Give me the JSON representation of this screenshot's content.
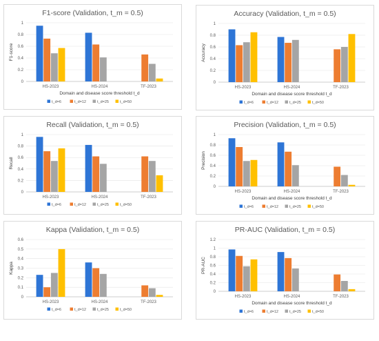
{
  "colors": {
    "t_d=6": "#2e75d6",
    "t_d=12": "#ed7d31",
    "t_d=25": "#a5a5a5",
    "t_d=50": "#ffc000"
  },
  "chart_data": [
    {
      "type": "bar",
      "title": "F1-score (Validation, t_m = 0.5)",
      "xlabel": "Domain and disease score threshold t_d",
      "ylabel": "F1-score",
      "ylim": [
        0,
        1
      ],
      "ystep": 0.2,
      "yticks": [
        "0",
        "0.2",
        "0.4",
        "0.6",
        "0.8",
        "1"
      ],
      "categories": [
        "HS-2023",
        "HS-2024",
        "TF-2023"
      ],
      "series": [
        {
          "name": "t_d=6",
          "values": [
            0.95,
            0.83,
            null
          ]
        },
        {
          "name": "t_d=12",
          "values": [
            0.73,
            0.63,
            0.46
          ]
        },
        {
          "name": "t_d=25",
          "values": [
            0.48,
            0.41,
            0.3
          ]
        },
        {
          "name": "t_d=50",
          "values": [
            0.57,
            null,
            0.05
          ]
        }
      ]
    },
    {
      "type": "bar",
      "title": "Accuracy (Validation, t_m = 0.5)",
      "xlabel": "Domain and disease score threshold t_d",
      "ylabel": "Accuracy",
      "ylim": [
        0,
        1
      ],
      "ystep": 0.2,
      "yticks": [
        "0",
        "0.2",
        "0.4",
        "0.6",
        "0.8",
        "1"
      ],
      "categories": [
        "HS-2023",
        "HS-2024",
        "TF-2023"
      ],
      "series": [
        {
          "name": "t_d=6",
          "values": [
            0.9,
            0.77,
            null
          ]
        },
        {
          "name": "t_d=12",
          "values": [
            0.63,
            0.67,
            0.56
          ]
        },
        {
          "name": "t_d=25",
          "values": [
            0.68,
            0.72,
            0.6
          ]
        },
        {
          "name": "t_d=50",
          "values": [
            0.85,
            null,
            0.82
          ]
        }
      ]
    },
    {
      "type": "bar",
      "title": "Recall (Validation,  t_m = 0.5)",
      "xlabel": "",
      "ylabel": "Recall",
      "ylim": [
        0,
        1
      ],
      "ystep": 0.2,
      "yticks": [
        "0",
        "0.2",
        "0.4",
        "0.6",
        "0.8",
        "1"
      ],
      "categories": [
        "HS-2023",
        "HS-2024",
        "TF-2023"
      ],
      "series": [
        {
          "name": "t_d=6",
          "values": [
            0.96,
            0.82,
            null
          ]
        },
        {
          "name": "t_d=12",
          "values": [
            0.71,
            0.62,
            0.62
          ]
        },
        {
          "name": "t_d=25",
          "values": [
            0.54,
            0.49,
            0.54
          ]
        },
        {
          "name": "t_d=50",
          "values": [
            0.76,
            null,
            0.29
          ]
        }
      ]
    },
    {
      "type": "bar",
      "title": "Precision (Validation, t_m = 0.5)",
      "xlabel": "Domain and disease score threshold t_d",
      "ylabel": "Precision",
      "ylim": [
        0,
        1
      ],
      "ystep": 0.2,
      "yticks": [
        "0",
        "0.2",
        "0.4",
        "0.6",
        "0.8",
        "1"
      ],
      "categories": [
        "HS-2023",
        "HS-2024",
        "TF-2023"
      ],
      "series": [
        {
          "name": "t_d=6",
          "values": [
            0.93,
            0.85,
            null
          ]
        },
        {
          "name": "t_d=12",
          "values": [
            0.76,
            0.67,
            0.38
          ]
        },
        {
          "name": "t_d=25",
          "values": [
            0.49,
            0.41,
            0.22
          ]
        },
        {
          "name": "t_d=50",
          "values": [
            0.51,
            null,
            0.03
          ]
        }
      ]
    },
    {
      "type": "bar",
      "title": "Kappa (Validation, t_m = 0.5)",
      "xlabel": "",
      "ylabel": "Kappa",
      "ylim": [
        0,
        0.6
      ],
      "ystep": 0.1,
      "yticks": [
        "0",
        "0.1",
        "0.2",
        "0.3",
        "0.4",
        "0.5",
        "0.6"
      ],
      "categories": [
        "HS-2023",
        "HS-2024",
        "TF-2023"
      ],
      "series": [
        {
          "name": "t_d=6",
          "values": [
            0.23,
            0.36,
            null
          ]
        },
        {
          "name": "t_d=12",
          "values": [
            0.1,
            0.3,
            0.12
          ]
        },
        {
          "name": "t_d=25",
          "values": [
            0.25,
            0.24,
            0.09
          ]
        },
        {
          "name": "t_d=50",
          "values": [
            0.5,
            null,
            0.02
          ]
        }
      ]
    },
    {
      "type": "bar",
      "title": "PR-AUC (Validation, t_m = 0.5)",
      "xlabel": "Domain and disease score threshold t_d",
      "ylabel": "PR-AUC",
      "ylim": [
        0,
        1.2
      ],
      "ystep": 0.2,
      "yticks": [
        "0",
        "0.2",
        "0.4",
        "0.6",
        "0.8",
        "1",
        "1.2"
      ],
      "categories": [
        "HS-2023",
        "HS-2024",
        "TF-2023"
      ],
      "series": [
        {
          "name": "t_d=6",
          "values": [
            0.97,
            0.91,
            null
          ]
        },
        {
          "name": "t_d=12",
          "values": [
            0.82,
            0.77,
            0.39
          ]
        },
        {
          "name": "t_d=25",
          "values": [
            0.58,
            0.53,
            0.24
          ]
        },
        {
          "name": "t_d=50",
          "values": [
            0.74,
            null,
            0.05
          ]
        }
      ]
    }
  ]
}
